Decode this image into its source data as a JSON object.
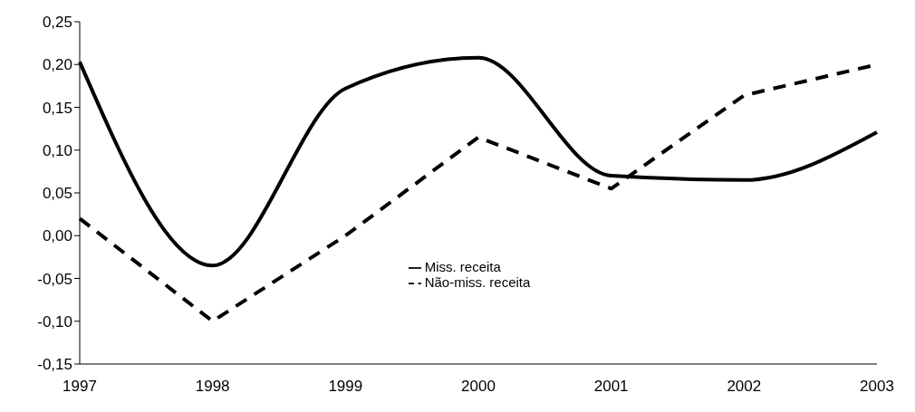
{
  "chart_data": {
    "type": "line",
    "categories": [
      "1997",
      "1998",
      "1999",
      "2000",
      "2001",
      "2002",
      "2003"
    ],
    "series": [
      {
        "name": "Miss. receita",
        "color": "#000000",
        "line_style": "solid",
        "values": [
          0.203,
          -0.035,
          0.172,
          0.208,
          0.07,
          0.065,
          0.121
        ]
      },
      {
        "name": "Não-miss. receita",
        "color": "#000000",
        "line_style": "dashed",
        "values": [
          0.02,
          -0.1,
          0.0,
          0.115,
          0.055,
          0.164,
          0.2
        ]
      }
    ],
    "ylim": [
      -0.15,
      0.25
    ],
    "yticks": [
      {
        "value": -0.15,
        "label": "-0,15"
      },
      {
        "value": -0.1,
        "label": "-0,10"
      },
      {
        "value": -0.05,
        "label": "-0,05"
      },
      {
        "value": 0,
        "label": "0,00"
      },
      {
        "value": 0.05,
        "label": "0,05"
      },
      {
        "value": 0.1,
        "label": "0,10"
      },
      {
        "value": 0.15,
        "label": "0,15"
      },
      {
        "value": 0.2,
        "label": "0,20"
      },
      {
        "value": 0.25,
        "label": "0,25"
      }
    ],
    "grid": false,
    "legend": "center",
    "marker": "none"
  }
}
